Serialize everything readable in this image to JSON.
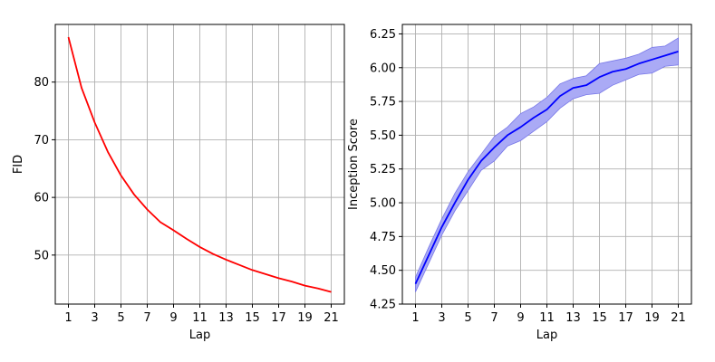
{
  "chart_data": [
    {
      "type": "line",
      "title": "",
      "xlabel": "Lap",
      "ylabel": "FID",
      "x": [
        1,
        2,
        3,
        4,
        5,
        6,
        7,
        8,
        9,
        10,
        11,
        12,
        13,
        14,
        15,
        16,
        17,
        18,
        19,
        20,
        21
      ],
      "series": [
        {
          "color": "#ff0000",
          "values": [
            87.8,
            79.0,
            73.0,
            67.9,
            63.8,
            60.5,
            57.9,
            55.7,
            54.3,
            52.8,
            51.4,
            50.2,
            49.2,
            48.3,
            47.4,
            46.7,
            46.0,
            45.4,
            44.7,
            44.2,
            43.6
          ]
        }
      ],
      "xlim": [
        0.0,
        22.0
      ],
      "ylim": [
        41.5,
        90.0
      ],
      "xticks": [
        1,
        3,
        5,
        7,
        9,
        11,
        13,
        15,
        17,
        19,
        21
      ],
      "yticks": [
        50,
        60,
        70,
        80
      ],
      "ytick_labels": [
        "50",
        "60",
        "70",
        "80"
      ],
      "grid": true
    },
    {
      "type": "line",
      "title": "",
      "xlabel": "Lap",
      "ylabel": "Inception Score",
      "x": [
        1,
        2,
        3,
        4,
        5,
        6,
        7,
        8,
        9,
        10,
        11,
        12,
        13,
        14,
        15,
        16,
        17,
        18,
        19,
        20,
        21
      ],
      "series": [
        {
          "color": "#0000ff",
          "values": [
            4.4,
            4.61,
            4.82,
            5.0,
            5.17,
            5.31,
            5.41,
            5.5,
            5.56,
            5.63,
            5.69,
            5.79,
            5.85,
            5.87,
            5.93,
            5.97,
            5.99,
            6.03,
            6.06,
            6.09,
            6.12
          ],
          "band_lower": [
            4.34,
            4.55,
            4.76,
            4.94,
            5.09,
            5.24,
            5.31,
            5.42,
            5.46,
            5.53,
            5.6,
            5.7,
            5.77,
            5.8,
            5.81,
            5.87,
            5.91,
            5.95,
            5.96,
            6.01,
            6.02
          ],
          "band_upper": [
            4.45,
            4.67,
            4.88,
            5.07,
            5.23,
            5.36,
            5.49,
            5.56,
            5.66,
            5.71,
            5.78,
            5.88,
            5.92,
            5.94,
            6.03,
            6.05,
            6.07,
            6.1,
            6.15,
            6.16,
            6.22
          ],
          "band_color": "#aaaaf5"
        }
      ],
      "xlim": [
        0.0,
        22.0
      ],
      "ylim": [
        4.25,
        6.32
      ],
      "xticks": [
        1,
        3,
        5,
        7,
        9,
        11,
        13,
        15,
        17,
        19,
        21
      ],
      "yticks": [
        4.25,
        4.5,
        4.75,
        5.0,
        5.25,
        5.5,
        5.75,
        6.0,
        6.25
      ],
      "ytick_labels": [
        "4.25",
        "4.50",
        "4.75",
        "5.00",
        "5.25",
        "5.50",
        "5.75",
        "6.00",
        "6.25"
      ],
      "grid": true
    }
  ]
}
